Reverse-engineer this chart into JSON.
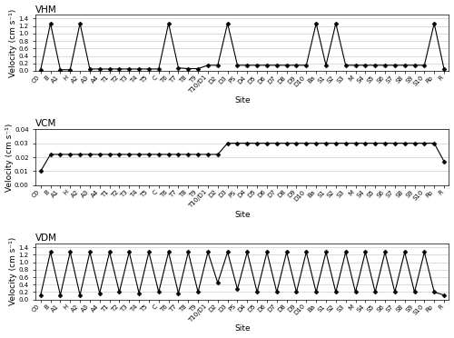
{
  "sites": [
    "C0",
    "B",
    "A1",
    "H",
    "A2",
    "A3",
    "A4",
    "T1",
    "T2",
    "T3",
    "T4",
    "T5",
    "C",
    "T6",
    "T7",
    "T8",
    "T9",
    "T10/D1",
    "D2",
    "D3",
    "PS",
    "D4",
    "D5",
    "D6",
    "D7",
    "D8",
    "D9",
    "D10",
    "Ba",
    "S1",
    "S2",
    "S3",
    "M",
    "S4",
    "S5",
    "S6",
    "S7",
    "S8",
    "S9",
    "S10",
    "Ro",
    "R"
  ],
  "vhm": [
    0.03,
    1.27,
    0.03,
    0.03,
    1.27,
    0.05,
    0.05,
    0.05,
    0.05,
    0.05,
    0.05,
    0.05,
    0.05,
    1.27,
    0.08,
    0.06,
    0.06,
    0.15,
    0.15,
    1.27,
    0.15,
    0.15,
    0.15,
    0.15,
    0.15,
    0.15,
    0.15,
    0.15,
    1.27,
    0.15,
    1.27,
    0.15,
    0.15,
    0.15,
    0.15,
    0.15,
    0.15,
    0.15,
    0.15,
    0.15,
    1.27,
    0.05
  ],
  "vcm": [
    0.01,
    0.022,
    0.022,
    0.022,
    0.022,
    0.022,
    0.022,
    0.022,
    0.022,
    0.022,
    0.022,
    0.022,
    0.022,
    0.022,
    0.022,
    0.022,
    0.022,
    0.022,
    0.022,
    0.03,
    0.03,
    0.03,
    0.03,
    0.03,
    0.03,
    0.03,
    0.03,
    0.03,
    0.03,
    0.03,
    0.03,
    0.03,
    0.03,
    0.03,
    0.03,
    0.03,
    0.03,
    0.03,
    0.03,
    0.03,
    0.03,
    0.017
  ],
  "vdm": [
    0.12,
    1.27,
    0.12,
    1.27,
    0.12,
    1.27,
    0.17,
    1.27,
    0.2,
    1.27,
    0.17,
    1.27,
    0.2,
    1.27,
    0.17,
    1.27,
    0.2,
    1.27,
    0.45,
    1.27,
    0.28,
    1.27,
    0.2,
    1.27,
    0.2,
    1.27,
    0.2,
    1.27,
    0.2,
    1.27,
    0.2,
    1.27,
    0.2,
    1.27,
    0.2,
    1.27,
    0.2,
    1.27,
    0.2,
    1.27,
    0.2,
    0.12
  ],
  "ylabel": "Velocity (cm s⁻¹)",
  "xlabel": "Site",
  "title_vhm": "VHM",
  "title_vcm": "VCM",
  "title_vdm": "VDM",
  "ylim_vhm": [
    0,
    1.5
  ],
  "ylim_vcm": [
    0,
    0.04
  ],
  "ylim_vdm": [
    0,
    1.5
  ],
  "yticks_vhm": [
    0,
    0.2,
    0.4,
    0.6,
    0.8,
    1.0,
    1.2,
    1.4
  ],
  "yticks_vcm": [
    0,
    0.01,
    0.02,
    0.03,
    0.04
  ],
  "yticks_vdm": [
    0,
    0.2,
    0.4,
    0.6,
    0.8,
    1.0,
    1.2,
    1.4
  ],
  "line_color": "black",
  "marker": "D",
  "marker_size": 2.5,
  "line_width": 0.8,
  "grid_color": "#cccccc",
  "bg_color": "#ffffff",
  "title_fontsize": 7.5,
  "label_fontsize": 6.5,
  "tick_fontsize": 5.0
}
